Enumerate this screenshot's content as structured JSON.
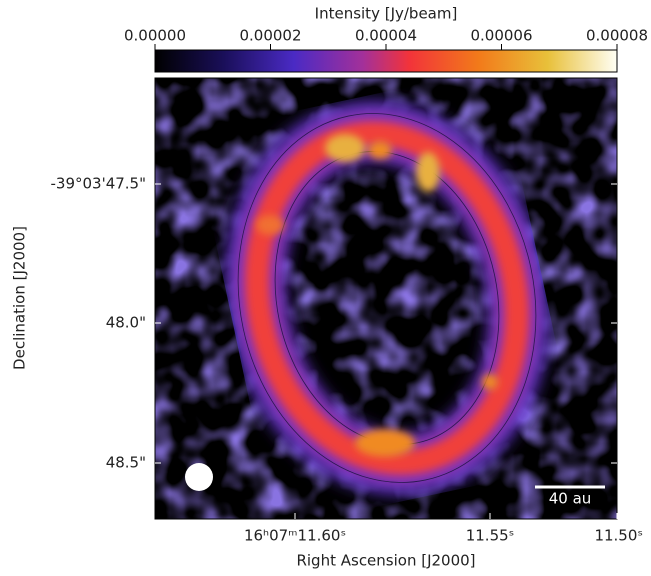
{
  "chart_data": {
    "type": "image",
    "colorbar": {
      "label": "Intensity [Jy/beam]",
      "ticks": [
        {
          "value": 0,
          "label": "0.00000"
        },
        {
          "value": 2e-05,
          "label": "0.00002"
        },
        {
          "value": 4e-05,
          "label": "0.00004"
        },
        {
          "value": 6e-05,
          "label": "0.00006"
        },
        {
          "value": 8e-05,
          "label": "0.00008"
        }
      ],
      "lim": [
        0,
        8e-05
      ]
    },
    "x_label": "Right Ascension [J2000]",
    "y_label": "Declination [J2000]",
    "x_tick_labels": [
      "16ʰ07ᵐ11.60ˢ",
      "11.55ˢ",
      "11.50ˢ"
    ],
    "y_tick_labels": [
      "-39°03'47.5\"",
      "48.0\"",
      "48.5\""
    ],
    "scale_bar": "40 au"
  }
}
